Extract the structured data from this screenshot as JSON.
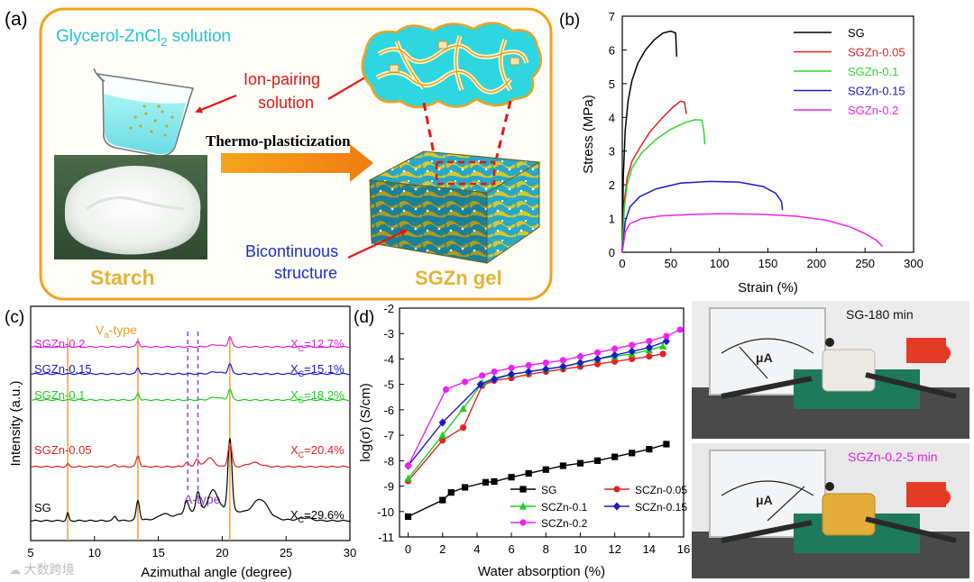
{
  "panel_a": {
    "label": "(a)",
    "solution_title_main": "Glycerol-ZnCl",
    "solution_title_sub": "2",
    "solution_title_tail": " solution",
    "ion_pairing_line1": "Ion-pairing",
    "ion_pairing_line2": "solution",
    "process": "Thermo-plasticization",
    "structure_line1": "Bicontinuous",
    "structure_line2": "structure",
    "starch": "Starch",
    "gel": "SGZn gel"
  },
  "panel_b": {
    "label": "(b)"
  },
  "panel_c": {
    "label": "(c)",
    "watermark": "大数跨境"
  },
  "panel_d": {
    "label": "(d)"
  },
  "photos": {
    "top_caption": "SG-180 min",
    "bottom_caption": "SGZn-0.2-5 min",
    "meter_unit": "μA"
  },
  "chart_data": [
    {
      "id": "b",
      "type": "line",
      "title": "",
      "xlabel": "Strain (%)",
      "ylabel": "Stress (MPa)",
      "xlim": [
        0,
        300
      ],
      "ylim": [
        0,
        7
      ],
      "xticks": [
        0,
        50,
        100,
        150,
        200,
        250,
        300
      ],
      "yticks": [
        0,
        1,
        2,
        3,
        4,
        5,
        6,
        7
      ],
      "series": [
        {
          "name": "SG",
          "color": "#000000",
          "x": [
            0,
            1,
            3,
            6,
            10,
            16,
            24,
            33,
            42,
            50,
            55,
            56
          ],
          "y": [
            0,
            2.2,
            3.6,
            4.5,
            5.1,
            5.6,
            6.0,
            6.3,
            6.5,
            6.56,
            6.5,
            5.8
          ]
        },
        {
          "name": "SGZn-0.05",
          "color": "#e8201a",
          "x": [
            0,
            2,
            5,
            10,
            18,
            28,
            40,
            52,
            60,
            64,
            66
          ],
          "y": [
            0,
            1.5,
            2.2,
            2.7,
            3.1,
            3.55,
            3.95,
            4.3,
            4.48,
            4.45,
            4.1
          ]
        },
        {
          "name": "SGZn-0.1",
          "color": "#2bd82b",
          "x": [
            0,
            2,
            5,
            10,
            20,
            35,
            50,
            65,
            75,
            82,
            84,
            85
          ],
          "y": [
            0,
            1.3,
            2.0,
            2.5,
            2.95,
            3.35,
            3.65,
            3.85,
            3.93,
            3.92,
            3.6,
            3.2
          ]
        },
        {
          "name": "SGZn-0.15",
          "color": "#1a1ad0",
          "x": [
            0,
            3,
            8,
            18,
            35,
            60,
            90,
            120,
            145,
            158,
            164,
            165
          ],
          "y": [
            0,
            0.9,
            1.35,
            1.65,
            1.88,
            2.05,
            2.1,
            2.08,
            1.95,
            1.75,
            1.5,
            1.25
          ]
        },
        {
          "name": "SGZn-0.2",
          "color": "#ee22ee",
          "x": [
            0,
            3,
            8,
            20,
            40,
            70,
            100,
            140,
            180,
            210,
            235,
            250,
            262,
            268
          ],
          "y": [
            0,
            0.6,
            0.85,
            1.0,
            1.08,
            1.12,
            1.14,
            1.13,
            1.07,
            0.95,
            0.75,
            0.55,
            0.35,
            0.17
          ]
        }
      ]
    },
    {
      "id": "c",
      "type": "line",
      "xlabel": "Azimuthal angle (degree)",
      "ylabel": "Intensity (a.u.)",
      "xlim": [
        5,
        30
      ],
      "xticks": [
        5,
        10,
        15,
        20,
        25,
        30
      ],
      "annotations": {
        "va_type_main": "V",
        "va_type_sub": "a",
        "va_type_tail": "-type",
        "a_type": "A-type",
        "va_lines": [
          7.9,
          13.4,
          20.6
        ],
        "a_lines": [
          17.3,
          18.1
        ]
      },
      "series": [
        {
          "name": "SG",
          "color": "#000000",
          "crystallinity": "X",
          "crystallinity_sub": "C",
          "crystallinity_value": "=29.6%",
          "offset": 0,
          "peaks": [
            [
              7.9,
              0.22,
              0.12
            ],
            [
              11.6,
              0.12,
              0.18
            ],
            [
              13.4,
              0.58,
              0.18
            ],
            [
              15.4,
              0.12,
              0.45
            ],
            [
              17.2,
              0.35,
              0.22
            ],
            [
              18.1,
              0.55,
              0.22
            ],
            [
              19.3,
              0.55,
              0.5
            ],
            [
              20.6,
              2.1,
              0.22
            ],
            [
              23.0,
              0.5,
              0.8
            ],
            [
              26.5,
              0.08,
              0.7
            ]
          ]
        },
        {
          "name": "SGZn-0.05",
          "color": "#e02020",
          "crystallinity": "X",
          "crystallinity_sub": "C",
          "crystallinity_value": "=20.4%",
          "offset": 1.35,
          "peaks": [
            [
              7.9,
              0.08,
              0.12
            ],
            [
              11.6,
              0.06,
              0.2
            ],
            [
              13.4,
              0.32,
              0.18
            ],
            [
              17.2,
              0.12,
              0.22
            ],
            [
              18.0,
              0.22,
              0.22
            ],
            [
              19.0,
              0.25,
              0.5
            ],
            [
              20.6,
              0.7,
              0.22
            ],
            [
              22.5,
              0.12,
              0.7
            ]
          ]
        },
        {
          "name": "SGZn-0.1",
          "color": "#20cc20",
          "crystallinity": "X",
          "crystallinity_sub": "C",
          "crystallinity_value": "=18.2%",
          "offset": 2.45,
          "peaks": [
            [
              13.4,
              0.2,
              0.16
            ],
            [
              19.5,
              0.08,
              0.6
            ],
            [
              20.6,
              0.32,
              0.2
            ]
          ]
        },
        {
          "name": "SGZn-0.15",
          "color": "#1a1ac8",
          "crystallinity": "X",
          "crystallinity_sub": "C",
          "crystallinity_value": "=15.1%",
          "offset": 2.95,
          "peaks": [
            [
              13.4,
              0.18,
              0.16
            ],
            [
              19.5,
              0.06,
              0.6
            ],
            [
              20.6,
              0.3,
              0.2
            ]
          ]
        },
        {
          "name": "SGZn-0.2",
          "color": "#e020e0",
          "crystallinity": "X",
          "crystallinity_sub": "C",
          "crystallinity_value": "=12.7%",
          "offset": 3.55,
          "peaks": [
            [
              13.4,
              0.18,
              0.16
            ],
            [
              19.5,
              0.06,
              0.6
            ],
            [
              20.6,
              0.3,
              0.2
            ]
          ]
        }
      ]
    },
    {
      "id": "d",
      "type": "line",
      "xlabel": "Water absorption (%)",
      "ylabel": "log(σ) (S/cm)",
      "xlim": [
        -0.5,
        16
      ],
      "ylim": [
        -11,
        -2
      ],
      "xticks": [
        0,
        2,
        4,
        6,
        8,
        10,
        12,
        14,
        16
      ],
      "yticks": [
        -11,
        -10,
        -9,
        -8,
        -7,
        -6,
        -5,
        -4,
        -3,
        -2
      ],
      "series": [
        {
          "name": "SG",
          "color": "#000000",
          "marker": "square",
          "x": [
            0,
            2,
            2.5,
            3.3,
            4.5,
            5,
            6,
            7,
            8,
            9,
            10,
            11,
            12,
            13,
            14,
            15
          ],
          "y": [
            -10.2,
            -9.55,
            -9.25,
            -9.05,
            -8.85,
            -8.82,
            -8.65,
            -8.5,
            -8.35,
            -8.2,
            -8.1,
            -8.0,
            -7.85,
            -7.7,
            -7.55,
            -7.35
          ]
        },
        {
          "name": "SCZn-0.05",
          "color": "#e82020",
          "marker": "circle",
          "x": [
            0,
            2,
            3.2,
            4.3,
            5,
            6,
            7,
            8,
            9,
            10,
            11,
            12,
            13,
            14,
            14.8
          ],
          "y": [
            -8.8,
            -7.2,
            -6.7,
            -5.05,
            -4.85,
            -4.75,
            -4.6,
            -4.5,
            -4.4,
            -4.3,
            -4.2,
            -4.1,
            -4.0,
            -3.9,
            -3.8
          ]
        },
        {
          "name": "SCZn-0.1",
          "color": "#20cc20",
          "marker": "triangle",
          "x": [
            0,
            2,
            3.2,
            4.3,
            5,
            6,
            7,
            8,
            9,
            10,
            11,
            12,
            13,
            14,
            14.8
          ],
          "y": [
            -8.7,
            -7.0,
            -5.95,
            -4.95,
            -4.75,
            -4.6,
            -4.5,
            -4.4,
            -4.3,
            -4.15,
            -4.0,
            -3.9,
            -3.8,
            -3.65,
            -3.5
          ]
        },
        {
          "name": "SCZn-0.15",
          "color": "#1a1ac8",
          "marker": "diamond",
          "x": [
            0,
            2,
            4.2,
            5,
            6,
            7,
            8,
            9,
            10,
            11,
            12,
            13,
            14,
            15
          ],
          "y": [
            -8.2,
            -6.5,
            -5.0,
            -4.8,
            -4.6,
            -4.5,
            -4.4,
            -4.3,
            -4.15,
            -4.0,
            -3.85,
            -3.7,
            -3.55,
            -3.3
          ]
        },
        {
          "name": "SCZn-0.2",
          "color": "#ee22ee",
          "marker": "circle",
          "x": [
            0,
            2.2,
            3.3,
            4.3,
            5,
            6,
            7,
            8,
            9,
            10,
            11,
            12,
            13,
            14,
            15,
            15.8
          ],
          "y": [
            -8.2,
            -5.2,
            -4.9,
            -4.65,
            -4.5,
            -4.35,
            -4.25,
            -4.15,
            -4.05,
            -3.9,
            -3.75,
            -3.6,
            -3.45,
            -3.3,
            -3.1,
            -2.85
          ]
        }
      ]
    }
  ]
}
